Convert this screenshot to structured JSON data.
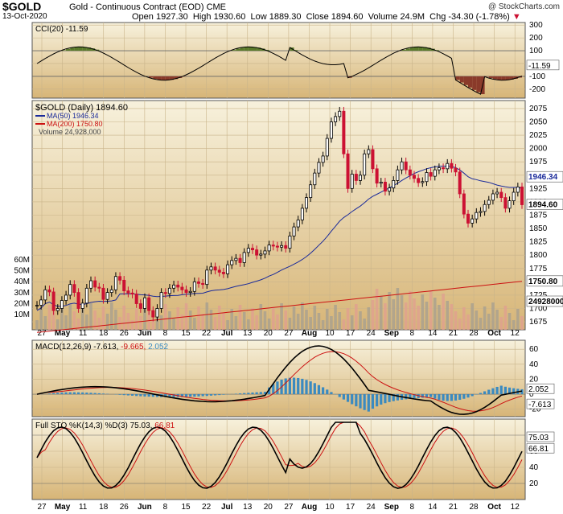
{
  "header": {
    "symbol": "$GOLD",
    "description": "Gold - Continuous Contract (EOD) CME",
    "copyright": "@ StockCharts.com",
    "date": "13-Oct-2020",
    "open_label": "Open",
    "open": "1927.30",
    "high_label": "High",
    "high": "1930.60",
    "low_label": "Low",
    "low": "1889.30",
    "close_label": "Close",
    "close": "1894.60",
    "volume_label": "Volume",
    "volume": "24.9M",
    "chg_label": "Chg",
    "chg": "-34.30 (-1.78%)"
  },
  "colors": {
    "panel_bg_top": "#f5eed6",
    "panel_bg_bottom": "#d9b97a",
    "up": "#000000",
    "down": "#cc1133",
    "ma50": "#1a2a9a",
    "ma200": "#cc1111",
    "cci_pos": "#5a7a2a",
    "cci_neg": "#8a3a2a",
    "macd_hist": "#3a8ac0",
    "vol_up": "#a8a090",
    "vol_down": "#e0a090"
  },
  "chart_data": {
    "type": "candlestick",
    "x_labels": [
      "27",
      "May",
      "11",
      "18",
      "26",
      "Jun",
      "8",
      "15",
      "22",
      "Jul",
      "13",
      "20",
      "27",
      "Aug",
      "10",
      "17",
      "24",
      "Sep",
      "8",
      "14",
      "21",
      "28",
      "Oct",
      "12"
    ],
    "ohlc_close": [
      1706,
      1716,
      1735,
      1731,
      1696,
      1700,
      1715,
      1725,
      1745,
      1730,
      1700,
      1710,
      1738,
      1752,
      1740,
      1738,
      1717,
      1730,
      1735,
      1760,
      1753,
      1733,
      1729,
      1727,
      1709,
      1700,
      1720,
      1696,
      1684,
      1700,
      1730,
      1728,
      1738,
      1744,
      1740,
      1735,
      1730,
      1732,
      1750,
      1747,
      1745,
      1772,
      1778,
      1772,
      1768,
      1765,
      1782,
      1790,
      1794,
      1786,
      1805,
      1813,
      1810,
      1800,
      1802,
      1808,
      1819,
      1817,
      1815,
      1818,
      1813,
      1836,
      1853,
      1866,
      1888,
      1908,
      1932,
      1954,
      1974,
      1986,
      2019,
      2050,
      2060,
      2070,
      1990,
      1925,
      1952,
      1940,
      1950,
      1990,
      1998,
      1962,
      1935,
      1937,
      1920,
      1926,
      1940,
      1960,
      1975,
      1960,
      1950,
      1944,
      1936,
      1938,
      1955,
      1948,
      1960,
      1964,
      1962,
      1972,
      1963,
      1956,
      1915,
      1877,
      1860,
      1868,
      1880,
      1882,
      1895,
      1903,
      1915,
      1918,
      1908,
      1888,
      1902,
      1918,
      1928,
      1894.6
    ],
    "ma50": {
      "name": "MA(50)",
      "value": "1946.34"
    },
    "ma200": {
      "name": "MA(200)",
      "value": "1750.80"
    },
    "volume_legend": "Volume 24,928,000",
    "price_legend": "$GOLD (Daily) 1894.60",
    "price_ticks": [
      "2075",
      "2050",
      "2025",
      "2000",
      "1975",
      "1950",
      "1925",
      "1900",
      "1875",
      "1850",
      "1825",
      "1800",
      "1775",
      "1750",
      "1725",
      "1700",
      "1675"
    ],
    "price_range": [
      1660,
      2090
    ],
    "volume_ticks": [
      "60M",
      "50M",
      "40M",
      "30M",
      "20M",
      "10M"
    ],
    "price_badges": {
      "ma50": "1946.34",
      "close": "1894.60",
      "ma200": "1750.80",
      "volume": "24928000"
    },
    "cci": {
      "label": "CCI(20) -11.59",
      "ticks": [
        "300",
        "200",
        "100",
        "0",
        "-100",
        "-200"
      ],
      "value_badge": "-11.59",
      "range": [
        -270,
        320
      ]
    },
    "macd": {
      "label": "MACD(12,26,9)",
      "v1": "-7.613",
      "v2": "-9.665",
      "v3": "2.052",
      "ticks": [
        "60",
        "40",
        "20",
        "0",
        "-20"
      ],
      "badges": [
        "2.052",
        "-7.613"
      ],
      "range": [
        -30,
        72
      ]
    },
    "sto": {
      "label": "Full STO %K(14,3) %D(3)",
      "v1": "75.03",
      "v2": "66.81",
      "ticks": [
        "80",
        "60",
        "40",
        "20"
      ],
      "badges": [
        "75.03",
        "66.81"
      ],
      "range": [
        0,
        100
      ]
    }
  }
}
